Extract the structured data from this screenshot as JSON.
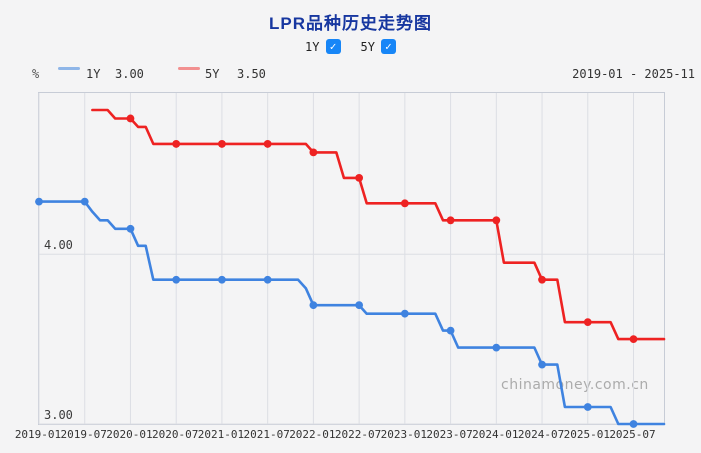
{
  "title": "LPR品种历史走势图",
  "controls": {
    "check_glyph": "✓",
    "options": [
      {
        "label": "1Y",
        "checked": true
      },
      {
        "label": "5Y",
        "checked": true
      }
    ]
  },
  "header": {
    "y_unit": "%",
    "legend": [
      {
        "label": "1Y",
        "value": "3.00",
        "swatch_color": "#8fb6e8"
      },
      {
        "label": "5Y",
        "value": "3.50",
        "swatch_color": "#f29090"
      }
    ],
    "date_range": "2019-01 - 2025-11"
  },
  "watermark": "chinamoney.com.cn",
  "colors": {
    "line_1y": "#3f83e0",
    "line_5y": "#ee2222",
    "gridline": "#dcdee4",
    "plot_border": "#c7ccd6"
  },
  "chart_data": {
    "type": "line",
    "title": "LPR品种历史走势图",
    "ylabel": "%",
    "x_start": "2019-01",
    "x_end": "2025-11",
    "x_ticks": [
      "2019-01",
      "2019-07",
      "2020-01",
      "2020-07",
      "2021-01",
      "2021-07",
      "2022-01",
      "2022-07",
      "2023-01",
      "2023-07",
      "2024-01",
      "2024-07",
      "2025-01",
      "2025-07"
    ],
    "y_range": [
      3.0,
      4.95
    ],
    "y_axis_labels": [
      {
        "value": 4.0,
        "label": "4.00"
      },
      {
        "value": 3.0,
        "label": "3.00"
      }
    ],
    "marker_interval_months": 6,
    "grid": true,
    "legend_position": "top-left",
    "series": [
      {
        "name": "1Y",
        "color": "#3f83e0",
        "start_month": "2019-01",
        "monthly_values": [
          4.31,
          4.31,
          4.31,
          4.31,
          4.31,
          4.31,
          4.31,
          4.25,
          4.2,
          4.2,
          4.15,
          4.15,
          4.15,
          4.05,
          4.05,
          3.85,
          3.85,
          3.85,
          3.85,
          3.85,
          3.85,
          3.85,
          3.85,
          3.85,
          3.85,
          3.85,
          3.85,
          3.85,
          3.85,
          3.85,
          3.85,
          3.85,
          3.85,
          3.85,
          3.85,
          3.8,
          3.7,
          3.7,
          3.7,
          3.7,
          3.7,
          3.7,
          3.7,
          3.65,
          3.65,
          3.65,
          3.65,
          3.65,
          3.65,
          3.65,
          3.65,
          3.65,
          3.65,
          3.55,
          3.55,
          3.45,
          3.45,
          3.45,
          3.45,
          3.45,
          3.45,
          3.45,
          3.45,
          3.45,
          3.45,
          3.45,
          3.35,
          3.35,
          3.35,
          3.1,
          3.1,
          3.1,
          3.1,
          3.1,
          3.1,
          3.1,
          3.0,
          3.0,
          3.0,
          3.0,
          3.0,
          3.0,
          3.0
        ]
      },
      {
        "name": "5Y",
        "color": "#ee2222",
        "start_month": "2019-08",
        "monthly_values": [
          4.85,
          4.85,
          4.85,
          4.8,
          4.8,
          4.8,
          4.75,
          4.75,
          4.65,
          4.65,
          4.65,
          4.65,
          4.65,
          4.65,
          4.65,
          4.65,
          4.65,
          4.65,
          4.65,
          4.65,
          4.65,
          4.65,
          4.65,
          4.65,
          4.65,
          4.65,
          4.65,
          4.65,
          4.65,
          4.6,
          4.6,
          4.6,
          4.6,
          4.45,
          4.45,
          4.45,
          4.3,
          4.3,
          4.3,
          4.3,
          4.3,
          4.3,
          4.3,
          4.3,
          4.3,
          4.3,
          4.2,
          4.2,
          4.2,
          4.2,
          4.2,
          4.2,
          4.2,
          4.2,
          3.95,
          3.95,
          3.95,
          3.95,
          3.95,
          3.85,
          3.85,
          3.85,
          3.6,
          3.6,
          3.6,
          3.6,
          3.6,
          3.6,
          3.6,
          3.5,
          3.5,
          3.5,
          3.5,
          3.5,
          3.5,
          3.5
        ]
      }
    ]
  }
}
